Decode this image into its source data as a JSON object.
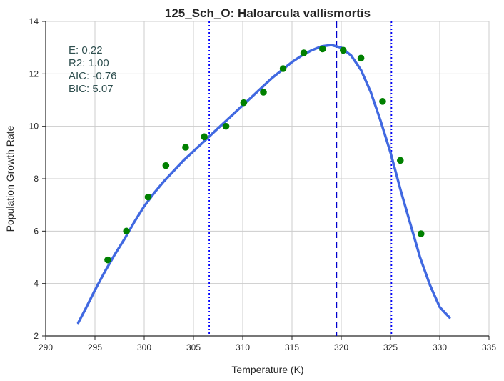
{
  "chart_data": {
    "type": "scatter",
    "title": "125_Sch_O: Haloarcula vallismortis",
    "xlabel": "Temperature (K)",
    "ylabel": "Population Growth Rate",
    "xlim": [
      290,
      335
    ],
    "ylim": [
      2,
      14
    ],
    "xticks": [
      290,
      295,
      300,
      305,
      310,
      315,
      320,
      325,
      330,
      335
    ],
    "yticks": [
      2,
      4,
      6,
      8,
      10,
      12,
      14
    ],
    "grid": true,
    "points": {
      "color": "#008000",
      "x": [
        296.3,
        298.2,
        300.4,
        302.2,
        304.2,
        306.1,
        308.3,
        310.1,
        312.1,
        314.1,
        316.2,
        318.1,
        320.2,
        322.0,
        324.2,
        326.0,
        328.1
      ],
      "y": [
        4.9,
        6.0,
        7.3,
        8.5,
        9.2,
        9.6,
        10.0,
        10.9,
        11.3,
        12.2,
        12.8,
        12.95,
        12.9,
        12.6,
        10.95,
        8.7,
        5.9
      ]
    },
    "fit_curve": {
      "color": "#4169e1",
      "x": [
        293.3,
        294,
        295,
        296,
        297,
        298,
        299,
        300,
        301,
        302,
        303,
        304,
        305,
        306,
        307,
        308,
        309,
        310,
        311,
        312,
        313,
        314,
        315,
        316,
        317,
        318,
        319,
        320,
        321,
        322,
        323,
        324,
        325,
        326,
        327,
        328,
        329,
        330,
        331
      ],
      "y": [
        2.5,
        3.0,
        3.75,
        4.45,
        5.1,
        5.7,
        6.35,
        6.95,
        7.45,
        7.9,
        8.3,
        8.7,
        9.05,
        9.4,
        9.75,
        10.1,
        10.45,
        10.8,
        11.15,
        11.5,
        11.85,
        12.15,
        12.45,
        12.7,
        12.9,
        13.05,
        13.1,
        13.0,
        12.7,
        12.15,
        11.3,
        10.2,
        9.0,
        7.6,
        6.3,
        5.0,
        3.95,
        3.1,
        2.7
      ]
    },
    "vlines": [
      {
        "x": 319.5,
        "style": "dashed",
        "color": "#0000cd"
      },
      {
        "x": 306.6,
        "style": "dotted",
        "color": "#0000ff"
      },
      {
        "x": 325.1,
        "style": "dotted",
        "color": "#0000ff"
      }
    ],
    "annotations": [
      "E:  0.22",
      "R2:  1.00",
      "AIC: -0.76",
      "BIC: 5.07"
    ]
  }
}
